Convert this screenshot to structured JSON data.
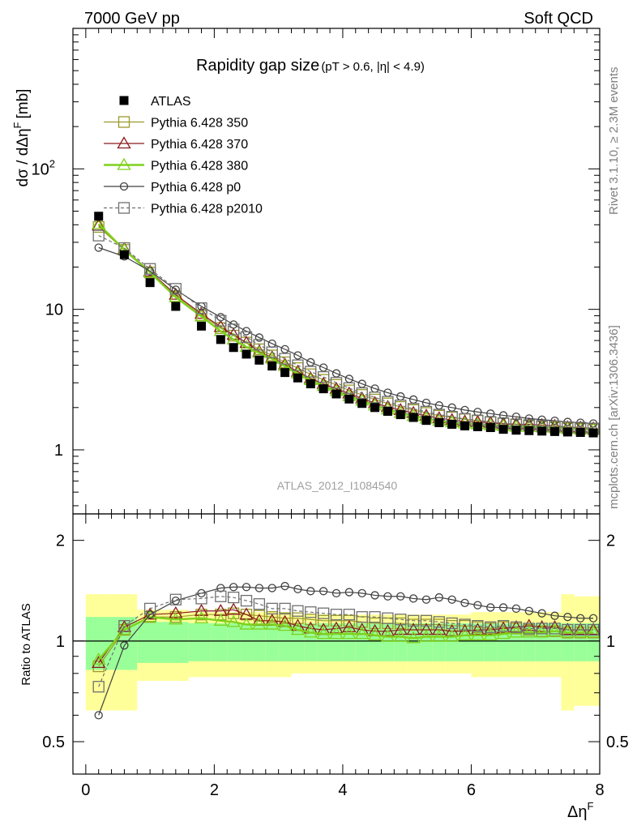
{
  "header": {
    "left": "7000 GeV pp",
    "right": "Soft QCD"
  },
  "side_labels": {
    "rivet": "Rivet 3.1.10, ≥ 2.3M events",
    "mcplots": "mcplots.cern.ch [arXiv:1306.3436]"
  },
  "chart_data": {
    "type": "scatter",
    "title_main": "Rapidity gap size",
    "title_cut": "(pT > 0.6, |η| < 4.9)",
    "watermark": "ATLAS_2012_I1084540",
    "xlabel": "Δη",
    "xlabel_sup": "F",
    "ylabel": "dσ / dΔη",
    "ylabel_sup": "F",
    "ylabel_unit": "[mb]",
    "ratio_ylabel": "Ratio to ATLAS",
    "xlim": [
      -0.2,
      8.0
    ],
    "ylim": [
      0.35,
      1000
    ],
    "yscale": "log",
    "ratio_ylim": [
      0.4,
      2.4
    ],
    "ratio_yscale": "log",
    "xticks": [
      {
        "v": 0,
        "label": "0"
      },
      {
        "v": 2,
        "label": "2"
      },
      {
        "v": 4,
        "label": "4"
      },
      {
        "v": 6,
        "label": "6"
      },
      {
        "v": 8,
        "label": "8"
      }
    ],
    "yticks": [
      {
        "v": 1,
        "label": "1"
      },
      {
        "v": 10,
        "label": "10"
      },
      {
        "v": 100,
        "label": "10",
        "sup": "2"
      }
    ],
    "ratio_yticks": [
      {
        "v": 0.5,
        "label": "0.5"
      },
      {
        "v": 1,
        "label": "1"
      },
      {
        "v": 2,
        "label": "2"
      }
    ],
    "legend_position": "top-left",
    "x": [
      0.2,
      0.6,
      1.0,
      1.4,
      1.8,
      2.1,
      2.3,
      2.5,
      2.7,
      2.9,
      3.1,
      3.3,
      3.5,
      3.7,
      3.9,
      4.1,
      4.3,
      4.5,
      4.7,
      4.9,
      5.1,
      5.3,
      5.5,
      5.7,
      5.9,
      6.1,
      6.3,
      6.5,
      6.7,
      6.9,
      7.1,
      7.3,
      7.5,
      7.7,
      7.9
    ],
    "data": {
      "name": "ATLAS",
      "values": [
        46,
        24.5,
        15.5,
        10.5,
        7.6,
        6.1,
        5.35,
        4.8,
        4.35,
        3.95,
        3.55,
        3.25,
        2.95,
        2.72,
        2.5,
        2.3,
        2.14,
        2.0,
        1.88,
        1.78,
        1.7,
        1.62,
        1.56,
        1.52,
        1.48,
        1.46,
        1.44,
        1.4,
        1.38,
        1.37,
        1.36,
        1.35,
        1.34,
        1.33,
        1.32
      ],
      "band_inner": [
        0.18,
        0.18,
        0.14,
        0.14,
        0.13,
        0.13,
        0.13,
        0.13,
        0.13,
        0.13,
        0.13,
        0.13,
        0.13,
        0.13,
        0.13,
        0.13,
        0.13,
        0.13,
        0.13,
        0.13,
        0.13,
        0.13,
        0.13,
        0.13,
        0.13,
        0.13,
        0.13,
        0.13,
        0.13,
        0.13,
        0.13,
        0.13,
        0.13,
        0.13,
        0.13
      ],
      "band_outer": [
        0.38,
        0.38,
        0.24,
        0.24,
        0.22,
        0.22,
        0.22,
        0.22,
        0.22,
        0.22,
        0.22,
        0.2,
        0.2,
        0.2,
        0.2,
        0.2,
        0.2,
        0.2,
        0.2,
        0.2,
        0.2,
        0.2,
        0.2,
        0.2,
        0.2,
        0.22,
        0.22,
        0.22,
        0.22,
        0.22,
        0.22,
        0.22,
        0.38,
        0.36,
        0.36
      ]
    },
    "series": [
      {
        "name": "Pythia 6.428 350",
        "color": "#9a9a2a",
        "marker": "square-open",
        "dash": "",
        "values": [
          38.6,
          26.5,
          18.3,
          12.4,
          9.1,
          7.35,
          6.5,
          5.8,
          5.2,
          4.7,
          4.2,
          3.82,
          3.45,
          3.15,
          2.9,
          2.65,
          2.46,
          2.28,
          2.14,
          2.02,
          1.92,
          1.83,
          1.75,
          1.7,
          1.65,
          1.61,
          1.57,
          1.54,
          1.51,
          1.48,
          1.46,
          1.44,
          1.42,
          1.41,
          1.4
        ],
        "ratio": [
          0.84,
          1.08,
          1.18,
          1.18,
          1.2,
          1.2,
          1.21,
          1.2,
          1.19,
          1.18,
          1.17,
          1.17,
          1.16,
          1.15,
          1.15,
          1.15,
          1.14,
          1.13,
          1.13,
          1.13,
          1.12,
          1.12,
          1.12,
          1.11,
          1.11,
          1.1,
          1.09,
          1.1,
          1.09,
          1.08,
          1.07,
          1.07,
          1.06,
          1.06,
          1.06
        ]
      },
      {
        "name": "Pythia 6.428 370",
        "color": "#8b1a1a",
        "marker": "triangle-open",
        "dash": "",
        "values": [
          39.5,
          26.9,
          18.6,
          12.7,
          9.3,
          7.5,
          6.6,
          5.78,
          5.0,
          4.55,
          4.05,
          3.6,
          3.22,
          2.95,
          2.72,
          2.52,
          2.32,
          2.15,
          2.02,
          1.92,
          1.83,
          1.75,
          1.68,
          1.63,
          1.59,
          1.58,
          1.56,
          1.53,
          1.52,
          1.52,
          1.5,
          1.48,
          1.45,
          1.44,
          1.42
        ],
        "ratio": [
          0.86,
          1.1,
          1.2,
          1.21,
          1.23,
          1.23,
          1.24,
          1.2,
          1.15,
          1.15,
          1.14,
          1.11,
          1.09,
          1.08,
          1.09,
          1.1,
          1.08,
          1.07,
          1.07,
          1.08,
          1.08,
          1.08,
          1.08,
          1.07,
          1.07,
          1.08,
          1.08,
          1.09,
          1.1,
          1.11,
          1.1,
          1.1,
          1.08,
          1.08,
          1.08
        ]
      },
      {
        "name": "Pythia 6.428 380",
        "color": "#7fd11b",
        "marker": "triangle-open",
        "dash": "",
        "values": [
          40.5,
          26.5,
          18.3,
          12.2,
          8.9,
          7.0,
          6.1,
          5.4,
          4.9,
          4.45,
          3.95,
          3.5,
          3.14,
          2.85,
          2.62,
          2.41,
          2.24,
          2.07,
          1.94,
          1.83,
          1.74,
          1.67,
          1.61,
          1.57,
          1.54,
          1.52,
          1.5,
          1.48,
          1.46,
          1.46,
          1.45,
          1.44,
          1.42,
          1.41,
          1.4
        ],
        "ratio": [
          0.88,
          1.08,
          1.18,
          1.16,
          1.17,
          1.15,
          1.14,
          1.12,
          1.12,
          1.12,
          1.11,
          1.08,
          1.06,
          1.05,
          1.05,
          1.05,
          1.05,
          1.04,
          1.03,
          1.03,
          1.02,
          1.03,
          1.03,
          1.03,
          1.04,
          1.04,
          1.04,
          1.05,
          1.06,
          1.06,
          1.06,
          1.07,
          1.06,
          1.06,
          1.06
        ]
      },
      {
        "name": "Pythia 6.428 p0",
        "color": "#404040",
        "marker": "circle-open",
        "dash": "",
        "values": [
          27.5,
          23.8,
          18.7,
          13.8,
          10.5,
          8.8,
          7.8,
          7.0,
          6.3,
          5.7,
          5.2,
          4.7,
          4.2,
          3.85,
          3.5,
          3.2,
          2.95,
          2.73,
          2.55,
          2.4,
          2.28,
          2.16,
          2.07,
          2.0,
          1.92,
          1.86,
          1.81,
          1.76,
          1.72,
          1.67,
          1.64,
          1.61,
          1.58,
          1.56,
          1.54
        ],
        "ratio": [
          0.6,
          0.97,
          1.2,
          1.32,
          1.39,
          1.44,
          1.45,
          1.45,
          1.44,
          1.44,
          1.46,
          1.43,
          1.41,
          1.41,
          1.39,
          1.4,
          1.39,
          1.37,
          1.36,
          1.36,
          1.34,
          1.33,
          1.35,
          1.33,
          1.3,
          1.28,
          1.26,
          1.26,
          1.25,
          1.23,
          1.21,
          1.19,
          1.18,
          1.17,
          1.17
        ]
      },
      {
        "name": "Pythia 6.428 p2010",
        "color": "#707070",
        "marker": "square-open",
        "dash": "4,3",
        "values": [
          33.5,
          27.3,
          19.4,
          14.0,
          10.2,
          8.3,
          7.2,
          6.35,
          5.6,
          4.95,
          4.45,
          4.0,
          3.6,
          3.3,
          3.0,
          2.75,
          2.53,
          2.36,
          2.2,
          2.07,
          1.96,
          1.87,
          1.78,
          1.72,
          1.66,
          1.62,
          1.58,
          1.55,
          1.52,
          1.5,
          1.48,
          1.47,
          1.45,
          1.44,
          1.42
        ],
        "ratio": [
          0.73,
          1.11,
          1.25,
          1.33,
          1.34,
          1.36,
          1.35,
          1.32,
          1.29,
          1.25,
          1.25,
          1.23,
          1.22,
          1.21,
          1.2,
          1.2,
          1.18,
          1.18,
          1.17,
          1.16,
          1.15,
          1.15,
          1.14,
          1.13,
          1.12,
          1.11,
          1.1,
          1.11,
          1.1,
          1.09,
          1.09,
          1.09,
          1.08,
          1.08,
          1.08
        ]
      }
    ]
  }
}
